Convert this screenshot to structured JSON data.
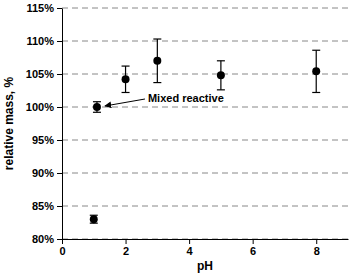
{
  "chart_data": {
    "type": "scatter",
    "x_label": "pH",
    "y_label": "relative mass, %",
    "x": [
      1,
      1.1,
      2,
      3,
      5,
      8
    ],
    "values": [
      83,
      100,
      104.2,
      107,
      104.8,
      105.4
    ],
    "errors": [
      0.6,
      0.8,
      2,
      3.3,
      2.2,
      3.2
    ],
    "color": "#000000",
    "marker": "circle",
    "xlim": [
      0,
      9
    ],
    "xticks": [
      0,
      2,
      4,
      6,
      8
    ],
    "ylim": [
      80,
      115
    ],
    "yticks": [
      {
        "value": 80,
        "label": "80%"
      },
      {
        "value": 85,
        "label": "85%"
      },
      {
        "value": 90,
        "label": "90%"
      },
      {
        "value": 95,
        "label": "95%"
      },
      {
        "value": 100,
        "label": "100%"
      },
      {
        "value": 105,
        "label": "105%"
      },
      {
        "value": 110,
        "label": "110%"
      },
      {
        "value": 115,
        "label": "115%"
      }
    ],
    "grid": true,
    "annotations": [
      {
        "text": "Mixed reactive",
        "x": 1.1,
        "y": 100
      }
    ]
  }
}
